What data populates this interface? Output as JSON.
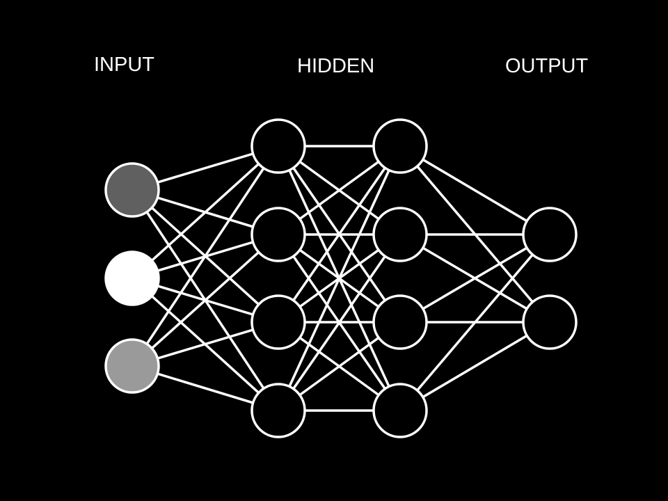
{
  "diagram": {
    "background": "#000000",
    "line_color": "#ffffff",
    "layers": [
      {
        "id": "input",
        "label": "INPUT",
        "nodes": [
          {
            "fill": "#606060"
          },
          {
            "fill": "#ffffff"
          },
          {
            "fill": "#9a9a9a"
          }
        ]
      },
      {
        "id": "hidden-1",
        "label": "HIDDEN",
        "nodes": [
          {
            "fill": "#000000"
          },
          {
            "fill": "#000000"
          },
          {
            "fill": "#000000"
          },
          {
            "fill": "#000000"
          }
        ]
      },
      {
        "id": "hidden-2",
        "label": "",
        "nodes": [
          {
            "fill": "#000000"
          },
          {
            "fill": "#000000"
          },
          {
            "fill": "#000000"
          },
          {
            "fill": "#000000"
          }
        ]
      },
      {
        "id": "output",
        "label": "OUTPUT",
        "nodes": [
          {
            "fill": "#000000"
          },
          {
            "fill": "#000000"
          }
        ]
      }
    ],
    "connectivity": "fully-connected"
  }
}
